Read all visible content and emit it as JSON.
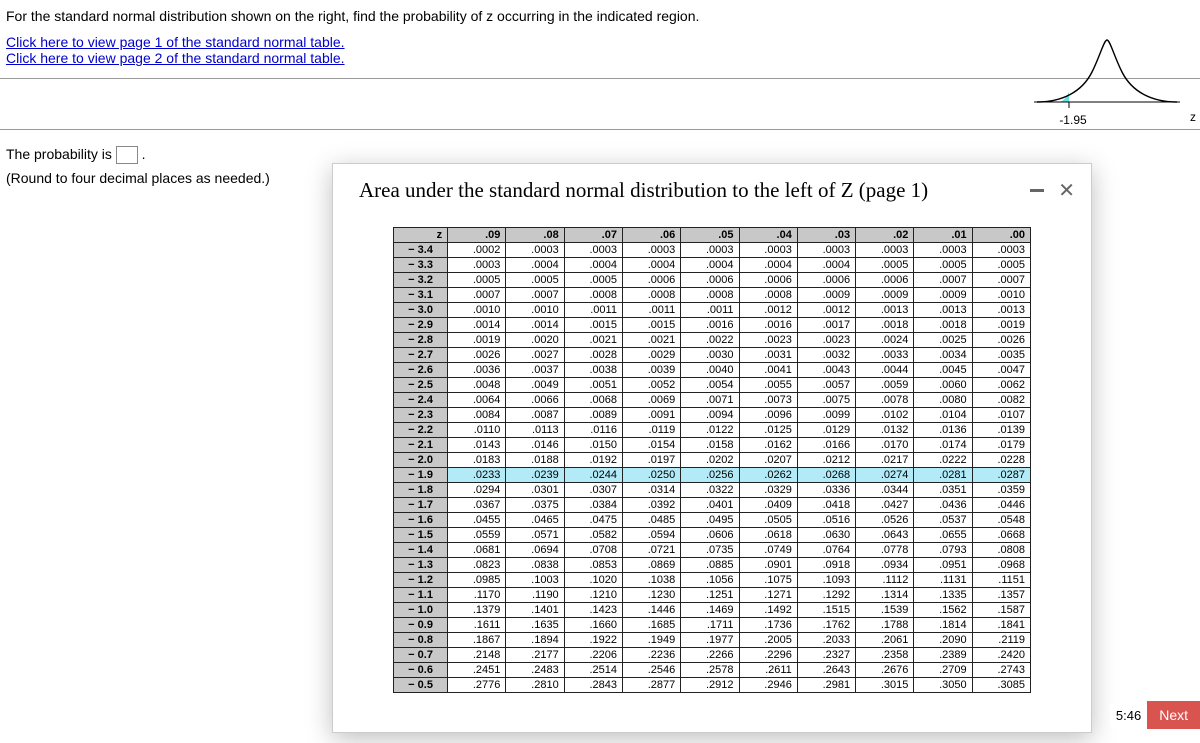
{
  "question": {
    "prompt": "For the standard normal distribution shown on the right, find the probability of z occurring in the indicated region.",
    "link1": "Click here to view page 1 of the standard normal table.",
    "link2": "Click here to view page 2 of the standard normal table.",
    "answer_pre": "The probability is ",
    "answer_post": ".",
    "hint": "(Round to four decimal places as needed.)"
  },
  "curve": {
    "axis_label": "z",
    "tick_value": "-1.95",
    "fill_color": "#5fe3e3",
    "line_color": "#000000"
  },
  "popup": {
    "title": "Area under the standard normal distribution to the left of Z (page 1)",
    "minimize_color": "#666666",
    "close_glyph": "✕"
  },
  "table": {
    "col_headers": [
      "z",
      ".09",
      ".08",
      ".07",
      ".06",
      ".05",
      ".04",
      ".03",
      ".02",
      ".01",
      ".00"
    ],
    "highlight_row_value": "-1.9",
    "rows": [
      {
        "z": "− 3.4",
        "v": [
          ".0002",
          ".0003",
          ".0003",
          ".0003",
          ".0003",
          ".0003",
          ".0003",
          ".0003",
          ".0003",
          ".0003"
        ]
      },
      {
        "z": "− 3.3",
        "v": [
          ".0003",
          ".0004",
          ".0004",
          ".0004",
          ".0004",
          ".0004",
          ".0004",
          ".0005",
          ".0005",
          ".0005"
        ]
      },
      {
        "z": "− 3.2",
        "v": [
          ".0005",
          ".0005",
          ".0005",
          ".0006",
          ".0006",
          ".0006",
          ".0006",
          ".0006",
          ".0007",
          ".0007"
        ]
      },
      {
        "z": "− 3.1",
        "v": [
          ".0007",
          ".0007",
          ".0008",
          ".0008",
          ".0008",
          ".0008",
          ".0009",
          ".0009",
          ".0009",
          ".0010"
        ]
      },
      {
        "z": "− 3.0",
        "v": [
          ".0010",
          ".0010",
          ".0011",
          ".0011",
          ".0011",
          ".0012",
          ".0012",
          ".0013",
          ".0013",
          ".0013"
        ]
      },
      {
        "z": "− 2.9",
        "v": [
          ".0014",
          ".0014",
          ".0015",
          ".0015",
          ".0016",
          ".0016",
          ".0017",
          ".0018",
          ".0018",
          ".0019"
        ]
      },
      {
        "z": "− 2.8",
        "v": [
          ".0019",
          ".0020",
          ".0021",
          ".0021",
          ".0022",
          ".0023",
          ".0023",
          ".0024",
          ".0025",
          ".0026"
        ]
      },
      {
        "z": "− 2.7",
        "v": [
          ".0026",
          ".0027",
          ".0028",
          ".0029",
          ".0030",
          ".0031",
          ".0032",
          ".0033",
          ".0034",
          ".0035"
        ]
      },
      {
        "z": "− 2.6",
        "v": [
          ".0036",
          ".0037",
          ".0038",
          ".0039",
          ".0040",
          ".0041",
          ".0043",
          ".0044",
          ".0045",
          ".0047"
        ]
      },
      {
        "z": "− 2.5",
        "v": [
          ".0048",
          ".0049",
          ".0051",
          ".0052",
          ".0054",
          ".0055",
          ".0057",
          ".0059",
          ".0060",
          ".0062"
        ]
      },
      {
        "z": "− 2.4",
        "v": [
          ".0064",
          ".0066",
          ".0068",
          ".0069",
          ".0071",
          ".0073",
          ".0075",
          ".0078",
          ".0080",
          ".0082"
        ]
      },
      {
        "z": "− 2.3",
        "v": [
          ".0084",
          ".0087",
          ".0089",
          ".0091",
          ".0094",
          ".0096",
          ".0099",
          ".0102",
          ".0104",
          ".0107"
        ]
      },
      {
        "z": "− 2.2",
        "v": [
          ".0110",
          ".0113",
          ".0116",
          ".0119",
          ".0122",
          ".0125",
          ".0129",
          ".0132",
          ".0136",
          ".0139"
        ]
      },
      {
        "z": "− 2.1",
        "v": [
          ".0143",
          ".0146",
          ".0150",
          ".0154",
          ".0158",
          ".0162",
          ".0166",
          ".0170",
          ".0174",
          ".0179"
        ]
      },
      {
        "z": "− 2.0",
        "v": [
          ".0183",
          ".0188",
          ".0192",
          ".0197",
          ".0202",
          ".0207",
          ".0212",
          ".0217",
          ".0222",
          ".0228"
        ]
      },
      {
        "z": "− 1.9",
        "v": [
          ".0233",
          ".0239",
          ".0244",
          ".0250",
          ".0256",
          ".0262",
          ".0268",
          ".0274",
          ".0281",
          ".0287"
        ]
      },
      {
        "z": "− 1.8",
        "v": [
          ".0294",
          ".0301",
          ".0307",
          ".0314",
          ".0322",
          ".0329",
          ".0336",
          ".0344",
          ".0351",
          ".0359"
        ]
      },
      {
        "z": "− 1.7",
        "v": [
          ".0367",
          ".0375",
          ".0384",
          ".0392",
          ".0401",
          ".0409",
          ".0418",
          ".0427",
          ".0436",
          ".0446"
        ]
      },
      {
        "z": "− 1.6",
        "v": [
          ".0455",
          ".0465",
          ".0475",
          ".0485",
          ".0495",
          ".0505",
          ".0516",
          ".0526",
          ".0537",
          ".0548"
        ]
      },
      {
        "z": "− 1.5",
        "v": [
          ".0559",
          ".0571",
          ".0582",
          ".0594",
          ".0606",
          ".0618",
          ".0630",
          ".0643",
          ".0655",
          ".0668"
        ]
      },
      {
        "z": "− 1.4",
        "v": [
          ".0681",
          ".0694",
          ".0708",
          ".0721",
          ".0735",
          ".0749",
          ".0764",
          ".0778",
          ".0793",
          ".0808"
        ]
      },
      {
        "z": "− 1.3",
        "v": [
          ".0823",
          ".0838",
          ".0853",
          ".0869",
          ".0885",
          ".0901",
          ".0918",
          ".0934",
          ".0951",
          ".0968"
        ]
      },
      {
        "z": "− 1.2",
        "v": [
          ".0985",
          ".1003",
          ".1020",
          ".1038",
          ".1056",
          ".1075",
          ".1093",
          ".1112",
          ".1131",
          ".1151"
        ]
      },
      {
        "z": "− 1.1",
        "v": [
          ".1170",
          ".1190",
          ".1210",
          ".1230",
          ".1251",
          ".1271",
          ".1292",
          ".1314",
          ".1335",
          ".1357"
        ]
      },
      {
        "z": "− 1.0",
        "v": [
          ".1379",
          ".1401",
          ".1423",
          ".1446",
          ".1469",
          ".1492",
          ".1515",
          ".1539",
          ".1562",
          ".1587"
        ]
      },
      {
        "z": "− 0.9",
        "v": [
          ".1611",
          ".1635",
          ".1660",
          ".1685",
          ".1711",
          ".1736",
          ".1762",
          ".1788",
          ".1814",
          ".1841"
        ]
      },
      {
        "z": "− 0.8",
        "v": [
          ".1867",
          ".1894",
          ".1922",
          ".1949",
          ".1977",
          ".2005",
          ".2033",
          ".2061",
          ".2090",
          ".2119"
        ]
      },
      {
        "z": "− 0.7",
        "v": [
          ".2148",
          ".2177",
          ".2206",
          ".2236",
          ".2266",
          ".2296",
          ".2327",
          ".2358",
          ".2389",
          ".2420"
        ]
      },
      {
        "z": "− 0.6",
        "v": [
          ".2451",
          ".2483",
          ".2514",
          ".2546",
          ".2578",
          ".2611",
          ".2643",
          ".2676",
          ".2709",
          ".2743"
        ]
      },
      {
        "z": "− 0.5",
        "v": [
          ".2776",
          ".2810",
          ".2843",
          ".2877",
          ".2912",
          ".2946",
          ".2981",
          ".3015",
          ".3050",
          ".3085"
        ]
      }
    ]
  },
  "footer": {
    "time": "5:46",
    "next": "Next"
  },
  "colors": {
    "link": "#0000cc",
    "header_bg": "#c8c8c8",
    "highlight_bg": "#b3eaf7",
    "next_bg": "#d9534f"
  }
}
